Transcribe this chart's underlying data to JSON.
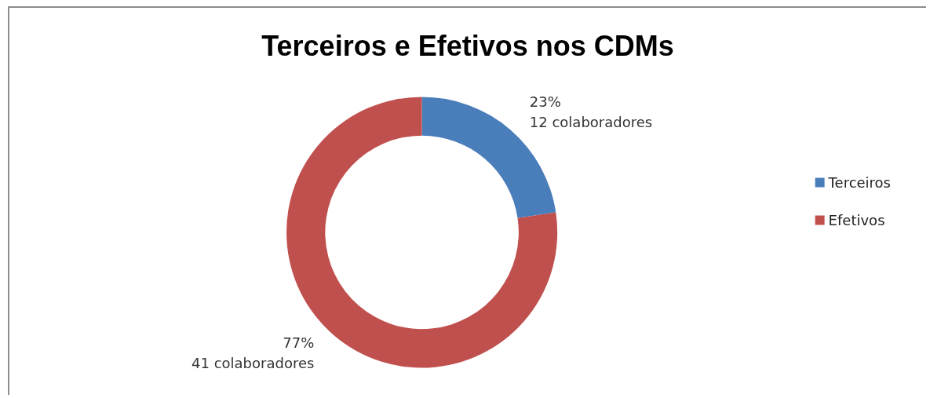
{
  "chart_data": {
    "type": "donut",
    "title": "Terceiros e Efetivos nos CDMs",
    "categories": [
      "Terceiros",
      "Efetivos"
    ],
    "values": [
      12,
      41
    ],
    "colors": [
      "#4a7ebb",
      "#c0504d"
    ],
    "value_labels": [
      "23%\n12 colaboradores",
      "77%\n41 colaboradores"
    ],
    "legend": "right"
  }
}
